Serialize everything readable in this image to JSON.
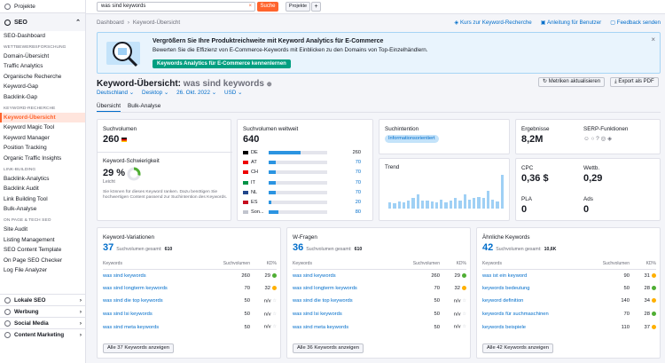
{
  "sidebar": {
    "projects": "Projekte",
    "seo": "SEO",
    "items": [
      {
        "label": "SEO-Dashboard",
        "type": "item"
      },
      {
        "label": "WETTBEWERBSFORSCHUNG",
        "type": "cat"
      },
      {
        "label": "Domain-Übersicht",
        "type": "item"
      },
      {
        "label": "Traffic Analytics",
        "type": "item"
      },
      {
        "label": "Organische Recherche",
        "type": "item"
      },
      {
        "label": "Keyword-Gap",
        "type": "item"
      },
      {
        "label": "Backlink-Gap",
        "type": "item"
      },
      {
        "label": "KEYWORD-RECHERCHE",
        "type": "cat"
      },
      {
        "label": "Keyword-Übersicht",
        "type": "active"
      },
      {
        "label": "Keyword Magic Tool",
        "type": "item"
      },
      {
        "label": "Keyword Manager",
        "type": "item"
      },
      {
        "label": "Position Tracking",
        "type": "item"
      },
      {
        "label": "Organic Traffic Insights",
        "type": "item"
      },
      {
        "label": "LINK-BUILDING",
        "type": "cat"
      },
      {
        "label": "Backlink-Analytics",
        "type": "item"
      },
      {
        "label": "Backlink Audit",
        "type": "item"
      },
      {
        "label": "Link Building Tool",
        "type": "item"
      },
      {
        "label": "Bulk-Analyse",
        "type": "item"
      },
      {
        "label": "ON PAGE & TECH SEO",
        "type": "cat"
      },
      {
        "label": "Site Audit",
        "type": "item"
      },
      {
        "label": "Listing Management",
        "type": "item"
      },
      {
        "label": "SEO Content Template",
        "type": "item"
      },
      {
        "label": "On Page SEO Checker",
        "type": "item"
      },
      {
        "label": "Log File Analyzer",
        "type": "item"
      }
    ],
    "sections": [
      "Lokale SEO",
      "Werbung",
      "Social Media",
      "Content Marketing"
    ]
  },
  "topbar": {
    "search_value": "was sind keywords",
    "search_button": "Suche",
    "projects": "Projekte",
    "plus": "+",
    "clear": "×"
  },
  "breadcrumbs": [
    "Dashboard",
    "›",
    "Keyword-Übersicht"
  ],
  "toplinks": [
    "Kurs zur Keyword-Recherche",
    "Anleitung für Benutzer",
    "Feedback senden"
  ],
  "banner": {
    "title": "Vergrößern Sie Ihre Produktreichweite mit Keyword Analytics für E-Commerce",
    "text": "Bewerten Sie die Effizienz von E-Commerce-Keywords mit Einblicken zu den Domains von Top-Einzelhändlern.",
    "button": "Keywords Analytics für E-Commerce kennenlernen",
    "close": "×"
  },
  "header": {
    "title": "Keyword-Übersicht:",
    "keyword": "was sind keywords",
    "refresh": "Metriken aktualisieren",
    "export": "Export als PDF",
    "filters": [
      "Deutschland ⌄",
      "Desktop ⌄",
      "26. Okt. 2022 ⌄",
      "USD ⌄"
    ]
  },
  "tabs": [
    "Übersicht",
    "Bulk-Analyse"
  ],
  "volume": {
    "label": "Suchvolumen",
    "value": "260"
  },
  "difficulty": {
    "label": "Keyword-Schwierigkeit",
    "value": "29 %",
    "level": "Leicht",
    "level_pct": 29,
    "note": "Sie können für dieses Keyword ranken. Dazu benötigen Sie hochwertigen Content passend zur Suchintention des Keywords."
  },
  "global": {
    "label": "Suchvolumen weltweit",
    "value": "640",
    "rows": [
      {
        "cc": "DE",
        "val": "260",
        "pct": 0.55
      },
      {
        "cc": "AT",
        "val": "70",
        "pct": 0.12
      },
      {
        "cc": "CH",
        "val": "70",
        "pct": 0.12
      },
      {
        "cc": "IT",
        "val": "70",
        "pct": 0.12
      },
      {
        "cc": "NL",
        "val": "70",
        "pct": 0.12
      },
      {
        "cc": "ES",
        "val": "20",
        "pct": 0.05
      },
      {
        "cc": "Son...",
        "val": "80",
        "pct": 0.16
      }
    ]
  },
  "intent": {
    "label": "Suchintention",
    "badge": "Informationsorientiert"
  },
  "trend": {
    "label": "Trend",
    "values": [
      0.18,
      0.16,
      0.2,
      0.17,
      0.22,
      0.3,
      0.4,
      0.22,
      0.22,
      0.2,
      0.18,
      0.24,
      0.18,
      0.22,
      0.3,
      0.22,
      0.4,
      0.26,
      0.3,
      0.32,
      0.3,
      0.5,
      0.26,
      0.2,
      0.95
    ]
  },
  "results": {
    "label": "Ergebnisse",
    "value": "8,2M"
  },
  "serp": {
    "label": "SERP-Funktionen",
    "icons": "☺ ○ ? ◎ ◈"
  },
  "cpc": {
    "label": "CPC",
    "value": "0,36 $"
  },
  "comp": {
    "label": "Wettb.",
    "value": "0,29"
  },
  "pla": {
    "label": "PLA",
    "value": "0"
  },
  "ads": {
    "label": "Ads",
    "value": "0"
  },
  "panels": [
    {
      "title": "Keyword-Variationen",
      "count": "37",
      "total_label": "Suchvolumen gesamt:",
      "total": "610",
      "cols": [
        "Keywords",
        "Suchvolumen",
        "KD%"
      ],
      "rows": [
        [
          "was sind keywords",
          "260",
          "29",
          "#4fae33"
        ],
        [
          "was sind longterm keywords",
          "70",
          "32",
          "#ffb000"
        ],
        [
          "was sind die top keywords",
          "50",
          "n/v",
          ""
        ],
        [
          "was sind lsi keywords",
          "50",
          "n/v",
          ""
        ],
        [
          "was sind meta keywords",
          "50",
          "n/v",
          ""
        ]
      ],
      "button": "Alle 37 Keywords anzeigen"
    },
    {
      "title": "W-Fragen",
      "count": "36",
      "total_label": "Suchvolumen gesamt:",
      "total": "610",
      "cols": [
        "Keywords",
        "Suchvolumen",
        "KD%"
      ],
      "rows": [
        [
          "was sind keywords",
          "260",
          "29",
          "#4fae33"
        ],
        [
          "was sind longterm keywords",
          "70",
          "32",
          "#ffb000"
        ],
        [
          "was sind die top keywords",
          "50",
          "n/v",
          ""
        ],
        [
          "was sind lsi keywords",
          "50",
          "n/v",
          ""
        ],
        [
          "was sind meta keywords",
          "50",
          "n/v",
          ""
        ]
      ],
      "button": "Alle 36 Keywords anzeigen"
    },
    {
      "title": "Ähnliche Keywords",
      "count": "42",
      "total_label": "Suchvolumen gesamt:",
      "total": "10,6K",
      "cols": [
        "Keywords",
        "Suchvolumen",
        "KD%"
      ],
      "rows": [
        [
          "was ist ein keyword",
          "90",
          "31",
          "#ffb000"
        ],
        [
          "keywords bedeutung",
          "50",
          "28",
          "#4fae33"
        ],
        [
          "keyword definition",
          "140",
          "34",
          "#ffb000"
        ],
        [
          "keywords für suchmaschinen",
          "70",
          "28",
          "#4fae33"
        ],
        [
          "keywords beispiele",
          "110",
          "37",
          "#ffb000"
        ]
      ],
      "button": "Alle 42 Keywords anzeigen"
    }
  ]
}
